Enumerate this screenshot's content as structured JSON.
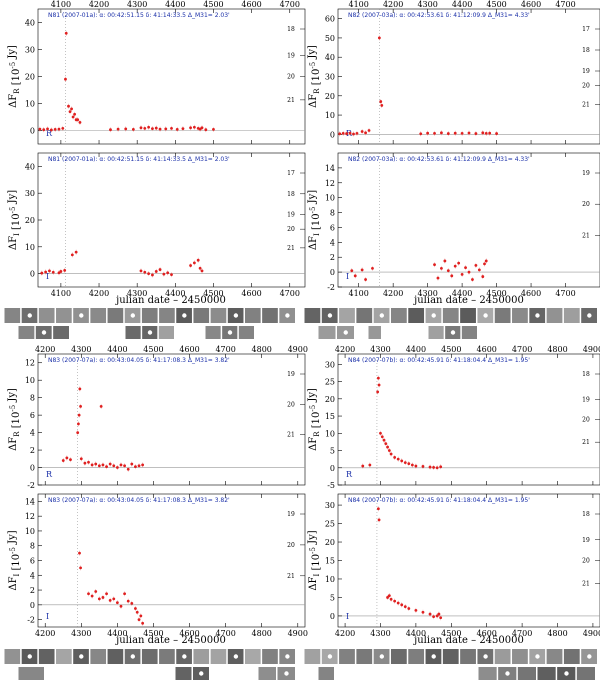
{
  "chart_data": [
    {
      "type": "scatter",
      "title": "N81 (2007-01a): α: 00:42:51.15 δ: 41:14:33.5 Δ_M31= 2.03'",
      "band": "R",
      "ylabel": "ΔF_R [10^-5 Jy]",
      "xlim": [
        4040,
        4740
      ],
      "ylim": [
        -5,
        45
      ],
      "xticks": [
        4100,
        4200,
        4300,
        4400,
        4500,
        4600,
        4700
      ],
      "yticks": [
        0,
        10,
        20,
        30,
        40
      ],
      "magticks": [
        "18",
        "19",
        "20",
        "21"
      ],
      "peak_x": 4112,
      "points": [
        [
          4045,
          0.5
        ],
        [
          4055,
          0.3
        ],
        [
          4065,
          0.6
        ],
        [
          4075,
          0.2
        ],
        [
          4085,
          0.4
        ],
        [
          4095,
          0.5
        ],
        [
          4105,
          0.8
        ],
        [
          4112,
          19
        ],
        [
          4114,
          36
        ],
        [
          4120,
          9
        ],
        [
          4124,
          7
        ],
        [
          4128,
          8
        ],
        [
          4132,
          5
        ],
        [
          4136,
          6
        ],
        [
          4140,
          4
        ],
        [
          4144,
          4
        ],
        [
          4150,
          3
        ],
        [
          4230,
          0.3
        ],
        [
          4250,
          0.5
        ],
        [
          4270,
          0.6
        ],
        [
          4290,
          0.4
        ],
        [
          4310,
          1.0
        ],
        [
          4320,
          0.8
        ],
        [
          4330,
          1.2
        ],
        [
          4340,
          0.7
        ],
        [
          4350,
          0.9
        ],
        [
          4360,
          0.5
        ],
        [
          4375,
          0.6
        ],
        [
          4390,
          0.8
        ],
        [
          4405,
          0.4
        ],
        [
          4420,
          0.7
        ],
        [
          4440,
          1.0
        ],
        [
          4450,
          1.2
        ],
        [
          4460,
          0.8
        ],
        [
          4465,
          0.5
        ],
        [
          4470,
          1.0
        ],
        [
          4480,
          0.3
        ],
        [
          4500,
          0.4
        ]
      ]
    },
    {
      "type": "scatter",
      "title": "N81 (2007-01a): α: 00:42:51.15 δ: 41:14:33.5 Δ_M31= 2.03'",
      "band": "I",
      "ylabel": "ΔF_I [10^-5 Jy]",
      "xlim": [
        4040,
        4740
      ],
      "ylim": [
        -5,
        45
      ],
      "xticks": [
        4100,
        4200,
        4300,
        4400,
        4500,
        4600,
        4700
      ],
      "yticks": [
        0,
        10,
        20,
        30,
        40
      ],
      "magticks": [
        "17",
        "18",
        "19",
        "20",
        "21"
      ],
      "peak_x": 4112,
      "points": [
        [
          4050,
          0.2
        ],
        [
          4060,
          0.6
        ],
        [
          4070,
          1.0
        ],
        [
          4080,
          0.5
        ],
        [
          4095,
          0.3
        ],
        [
          4100,
          0.8
        ],
        [
          4110,
          1.2
        ],
        [
          4130,
          7
        ],
        [
          4140,
          8
        ],
        [
          4310,
          1.0
        ],
        [
          4320,
          0.5
        ],
        [
          4330,
          0.0
        ],
        [
          4340,
          -0.5
        ],
        [
          4350,
          0.8
        ],
        [
          4360,
          1.5
        ],
        [
          4370,
          -0.2
        ],
        [
          4380,
          0.3
        ],
        [
          4390,
          -0.4
        ],
        [
          4440,
          3
        ],
        [
          4450,
          4
        ],
        [
          4460,
          5
        ],
        [
          4465,
          2
        ],
        [
          4470,
          1
        ]
      ]
    },
    {
      "type": "scatter",
      "title": "N82 (2007-03a): α: 00:42:53.61 δ: 41:12:09.9 Δ_M31= 4.33'",
      "band": "R",
      "ylabel": "ΔF_R [10^-5 Jy]",
      "xlim": [
        4040,
        4800
      ],
      "ylim": [
        -5,
        65
      ],
      "xticks": [
        4100,
        4200,
        4300,
        4400,
        4500,
        4600,
        4700
      ],
      "yticks": [
        0,
        10,
        20,
        30,
        40,
        50,
        60
      ],
      "magticks": [
        "17",
        "18",
        "19",
        "20",
        "21"
      ],
      "peak_x": 4160,
      "points": [
        [
          4045,
          0.3
        ],
        [
          4055,
          0.5
        ],
        [
          4065,
          0.4
        ],
        [
          4075,
          0.6
        ],
        [
          4085,
          0.2
        ],
        [
          4095,
          0.5
        ],
        [
          4110,
          1.5
        ],
        [
          4120,
          0.8
        ],
        [
          4130,
          2
        ],
        [
          4160,
          50
        ],
        [
          4164,
          17
        ],
        [
          4167,
          15
        ],
        [
          4280,
          0.3
        ],
        [
          4300,
          0.6
        ],
        [
          4320,
          0.5
        ],
        [
          4340,
          0.8
        ],
        [
          4360,
          0.4
        ],
        [
          4380,
          0.6
        ],
        [
          4400,
          0.5
        ],
        [
          4420,
          0.7
        ],
        [
          4440,
          0.4
        ],
        [
          4460,
          0.8
        ],
        [
          4470,
          0.5
        ],
        [
          4480,
          0.6
        ],
        [
          4500,
          0.4
        ]
      ]
    },
    {
      "type": "scatter",
      "title": "N82 (2007-03a): α: 00:42:53.61 δ: 41:12:09.9 Δ_M31= 4.33'",
      "band": "I",
      "ylabel": "ΔF_I [10^-5 Jy]",
      "xlim": [
        4040,
        4800
      ],
      "ylim": [
        -2,
        16
      ],
      "xticks": [
        4100,
        4200,
        4300,
        4400,
        4500,
        4600,
        4700
      ],
      "yticks": [
        -2,
        0,
        2,
        4,
        6,
        8,
        10,
        12,
        14
      ],
      "magticks": [
        "19",
        "20",
        "21"
      ],
      "peak_x": 4160,
      "points": [
        [
          4080,
          0.2
        ],
        [
          4090,
          -0.5
        ],
        [
          4110,
          0.3
        ],
        [
          4120,
          -1.0
        ],
        [
          4140,
          0.5
        ],
        [
          4320,
          1.0
        ],
        [
          4330,
          -0.8
        ],
        [
          4340,
          0.5
        ],
        [
          4350,
          1.5
        ],
        [
          4360,
          0.2
        ],
        [
          4370,
          -0.5
        ],
        [
          4380,
          0.8
        ],
        [
          4390,
          1.2
        ],
        [
          4400,
          -0.3
        ],
        [
          4410,
          0.6
        ],
        [
          4420,
          0.0
        ],
        [
          4430,
          -1.0
        ],
        [
          4440,
          0.9
        ],
        [
          4450,
          0.3
        ],
        [
          4460,
          -0.6
        ],
        [
          4465,
          1.1
        ],
        [
          4470,
          1.5
        ]
      ]
    },
    {
      "type": "scatter",
      "title": "N83 (2007-07a): α: 00:43:04.05 δ: 41:17:08.3 Δ_M31= 3.82'",
      "band": "R",
      "ylabel": "ΔF_R [10^-5 Jy]",
      "xlim": [
        4180,
        4920
      ],
      "ylim": [
        -2,
        13
      ],
      "xticks": [
        4200,
        4300,
        4400,
        4500,
        4600,
        4700,
        4800,
        4900
      ],
      "yticks": [
        -2,
        0,
        2,
        4,
        6,
        8,
        10,
        12
      ],
      "magticks": [
        "19",
        "20",
        "21"
      ],
      "peak_x": 4290,
      "points": [
        [
          4250,
          0.8
        ],
        [
          4260,
          1.1
        ],
        [
          4270,
          0.9
        ],
        [
          4290,
          4
        ],
        [
          4292,
          5
        ],
        [
          4294,
          6
        ],
        [
          4296,
          9
        ],
        [
          4298,
          7
        ],
        [
          4300,
          1.0
        ],
        [
          4310,
          0.5
        ],
        [
          4320,
          0.6
        ],
        [
          4330,
          0.3
        ],
        [
          4340,
          0.4
        ],
        [
          4350,
          0.2
        ],
        [
          4355,
          7
        ],
        [
          4360,
          0.3
        ],
        [
          4370,
          0.1
        ],
        [
          4380,
          0.4
        ],
        [
          4390,
          0.2
        ],
        [
          4400,
          0.0
        ],
        [
          4410,
          0.3
        ],
        [
          4420,
          0.2
        ],
        [
          4430,
          -0.2
        ],
        [
          4440,
          0.4
        ],
        [
          4450,
          0.1
        ],
        [
          4460,
          0.2
        ],
        [
          4470,
          0.3
        ]
      ]
    },
    {
      "type": "scatter",
      "title": "N83 (2007-07a): α: 00:43:04.05 δ: 41:17:08.3 Δ_M31= 3.82'",
      "band": "I",
      "ylabel": "ΔF_I [10^-5 Jy]",
      "xlim": [
        4180,
        4920
      ],
      "ylim": [
        -3,
        15
      ],
      "xticks": [
        4200,
        4300,
        4400,
        4500,
        4600,
        4700,
        4800,
        4900
      ],
      "yticks": [
        -2,
        0,
        2,
        4,
        6,
        8,
        10,
        12,
        14
      ],
      "magticks": [
        "19",
        "20",
        "21"
      ],
      "peak_x": 4290,
      "points": [
        [
          4295,
          7
        ],
        [
          4298,
          5
        ],
        [
          4320,
          1.5
        ],
        [
          4330,
          1.2
        ],
        [
          4340,
          1.8
        ],
        [
          4350,
          0.8
        ],
        [
          4360,
          1.0
        ],
        [
          4370,
          1.5
        ],
        [
          4380,
          0.6
        ],
        [
          4390,
          0.8
        ],
        [
          4400,
          0.3
        ],
        [
          4410,
          -0.2
        ],
        [
          4420,
          1.5
        ],
        [
          4430,
          0.5
        ],
        [
          4440,
          0.2
        ],
        [
          4450,
          -0.5
        ],
        [
          4455,
          -1.0
        ],
        [
          4460,
          -2.0
        ],
        [
          4465,
          -1.5
        ],
        [
          4470,
          -2.5
        ]
      ]
    },
    {
      "type": "scatter",
      "title": "N84 (2007-07b): α: 00:42:45.91 δ: 41:18:04.4 Δ_M31= 1.95'",
      "band": "R",
      "ylabel": "ΔF_R [10^-5 Jy]",
      "xlim": [
        4180,
        4920
      ],
      "ylim": [
        -5,
        33
      ],
      "xticks": [
        4200,
        4300,
        4400,
        4500,
        4600,
        4700,
        4800,
        4900
      ],
      "yticks": [
        -5,
        0,
        5,
        10,
        15,
        20,
        25,
        30
      ],
      "magticks": [
        "18",
        "19",
        "20",
        "21"
      ],
      "peak_x": 4290,
      "points": [
        [
          4250,
          0.5
        ],
        [
          4270,
          0.8
        ],
        [
          4292,
          22
        ],
        [
          4294,
          26
        ],
        [
          4296,
          24
        ],
        [
          4300,
          10
        ],
        [
          4305,
          9
        ],
        [
          4310,
          8
        ],
        [
          4315,
          7
        ],
        [
          4320,
          6
        ],
        [
          4325,
          5
        ],
        [
          4330,
          4
        ],
        [
          4340,
          3
        ],
        [
          4350,
          2.5
        ],
        [
          4360,
          2
        ],
        [
          4370,
          1.5
        ],
        [
          4380,
          1.2
        ],
        [
          4390,
          0.8
        ],
        [
          4400,
          0.5
        ],
        [
          4420,
          0.4
        ],
        [
          4440,
          0.2
        ],
        [
          4450,
          0.1
        ],
        [
          4460,
          0.0
        ],
        [
          4470,
          0.3
        ]
      ]
    },
    {
      "type": "scatter",
      "title": "N84 (2007-07b): α: 00:42:45.91 δ: 41:18:04.4 Δ_M31= 1.95'",
      "band": "I",
      "ylabel": "ΔF_I [10^-5 Jy]",
      "xlim": [
        4180,
        4920
      ],
      "ylim": [
        -3,
        33
      ],
      "xticks": [
        4200,
        4300,
        4400,
        4500,
        4600,
        4700,
        4800,
        4900
      ],
      "yticks": [
        0,
        5,
        10,
        15,
        20,
        25,
        30
      ],
      "magticks": [
        "18",
        "19",
        "20",
        "21"
      ],
      "peak_x": 4290,
      "points": [
        [
          4294,
          29
        ],
        [
          4296,
          26
        ],
        [
          4320,
          5
        ],
        [
          4325,
          5.5
        ],
        [
          4330,
          4.5
        ],
        [
          4340,
          4
        ],
        [
          4350,
          3.5
        ],
        [
          4360,
          3
        ],
        [
          4370,
          2.5
        ],
        [
          4380,
          2
        ],
        [
          4400,
          1.5
        ],
        [
          4420,
          1
        ],
        [
          4440,
          0.5
        ],
        [
          4450,
          -0.2
        ],
        [
          4460,
          0.0
        ],
        [
          4465,
          0.5
        ],
        [
          4470,
          -0.5
        ]
      ]
    }
  ],
  "xlabel": "julian date – 2450000"
}
